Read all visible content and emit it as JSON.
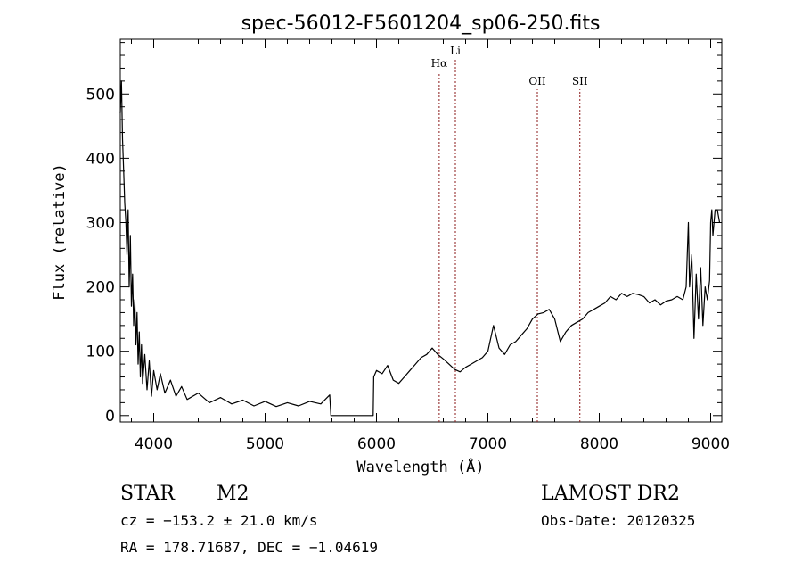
{
  "chart_data": {
    "type": "line",
    "title": "spec-56012-F5601204_sp06-250.fits",
    "xlabel": "Wavelength (Å)",
    "ylabel": "Flux (relative)",
    "xlim": [
      3700,
      9100
    ],
    "ylim": [
      -10,
      585
    ],
    "x_ticks": [
      4000,
      5000,
      6000,
      7000,
      8000,
      9000
    ],
    "y_ticks": [
      0,
      100,
      200,
      300,
      400,
      500
    ],
    "grid": false,
    "line_color": "#000000",
    "marker_color": "#8b1a1a",
    "spectral_lines": [
      {
        "label": "Hα",
        "x": 6563
      },
      {
        "label": "Li",
        "x": 6708
      },
      {
        "label": "OII",
        "x": 7444
      },
      {
        "label": "SII",
        "x": 7826
      }
    ],
    "series": [
      {
        "points": [
          [
            3700,
            470
          ],
          [
            3710,
            520
          ],
          [
            3720,
            430
          ],
          [
            3730,
            380
          ],
          [
            3740,
            330
          ],
          [
            3750,
            300
          ],
          [
            3760,
            250
          ],
          [
            3770,
            320
          ],
          [
            3780,
            200
          ],
          [
            3790,
            280
          ],
          [
            3800,
            170
          ],
          [
            3810,
            220
          ],
          [
            3820,
            140
          ],
          [
            3830,
            180
          ],
          [
            3840,
            110
          ],
          [
            3850,
            160
          ],
          [
            3860,
            80
          ],
          [
            3870,
            130
          ],
          [
            3880,
            60
          ],
          [
            3890,
            110
          ],
          [
            3900,
            50
          ],
          [
            3920,
            95
          ],
          [
            3940,
            40
          ],
          [
            3960,
            85
          ],
          [
            3980,
            30
          ],
          [
            4000,
            70
          ],
          [
            4030,
            40
          ],
          [
            4060,
            65
          ],
          [
            4100,
            35
          ],
          [
            4150,
            55
          ],
          [
            4200,
            30
          ],
          [
            4250,
            45
          ],
          [
            4300,
            25
          ],
          [
            4400,
            35
          ],
          [
            4500,
            20
          ],
          [
            4600,
            28
          ],
          [
            4700,
            18
          ],
          [
            4800,
            24
          ],
          [
            4900,
            15
          ],
          [
            5000,
            22
          ],
          [
            5100,
            14
          ],
          [
            5200,
            20
          ],
          [
            5300,
            15
          ],
          [
            5400,
            22
          ],
          [
            5500,
            18
          ],
          [
            5580,
            32
          ],
          [
            5590,
            0
          ],
          [
            5970,
            0
          ],
          [
            5975,
            60
          ],
          [
            6000,
            70
          ],
          [
            6050,
            65
          ],
          [
            6100,
            78
          ],
          [
            6150,
            55
          ],
          [
            6200,
            50
          ],
          [
            6250,
            60
          ],
          [
            6300,
            70
          ],
          [
            6350,
            80
          ],
          [
            6400,
            90
          ],
          [
            6450,
            95
          ],
          [
            6500,
            105
          ],
          [
            6550,
            95
          ],
          [
            6600,
            88
          ],
          [
            6650,
            80
          ],
          [
            6700,
            72
          ],
          [
            6750,
            68
          ],
          [
            6800,
            75
          ],
          [
            6850,
            80
          ],
          [
            6900,
            85
          ],
          [
            6950,
            90
          ],
          [
            7000,
            100
          ],
          [
            7050,
            140
          ],
          [
            7100,
            105
          ],
          [
            7150,
            95
          ],
          [
            7200,
            110
          ],
          [
            7250,
            115
          ],
          [
            7300,
            125
          ],
          [
            7350,
            135
          ],
          [
            7400,
            150
          ],
          [
            7450,
            158
          ],
          [
            7500,
            160
          ],
          [
            7550,
            165
          ],
          [
            7600,
            150
          ],
          [
            7650,
            115
          ],
          [
            7700,
            130
          ],
          [
            7750,
            140
          ],
          [
            7800,
            145
          ],
          [
            7850,
            150
          ],
          [
            7900,
            160
          ],
          [
            7950,
            165
          ],
          [
            8000,
            170
          ],
          [
            8050,
            175
          ],
          [
            8100,
            185
          ],
          [
            8150,
            180
          ],
          [
            8200,
            190
          ],
          [
            8250,
            185
          ],
          [
            8300,
            190
          ],
          [
            8350,
            188
          ],
          [
            8400,
            185
          ],
          [
            8450,
            175
          ],
          [
            8500,
            180
          ],
          [
            8550,
            172
          ],
          [
            8600,
            178
          ],
          [
            8650,
            180
          ],
          [
            8700,
            185
          ],
          [
            8750,
            180
          ],
          [
            8780,
            200
          ],
          [
            8800,
            300
          ],
          [
            8810,
            200
          ],
          [
            8830,
            250
          ],
          [
            8850,
            120
          ],
          [
            8870,
            220
          ],
          [
            8890,
            150
          ],
          [
            8910,
            230
          ],
          [
            8930,
            140
          ],
          [
            8950,
            200
          ],
          [
            8970,
            180
          ],
          [
            8990,
            210
          ],
          [
            9000,
            300
          ],
          [
            9010,
            320
          ],
          [
            9020,
            280
          ],
          [
            9040,
            320
          ],
          [
            9060,
            320
          ],
          [
            9080,
            300
          ]
        ]
      }
    ]
  },
  "footer": {
    "object_class": "STAR",
    "subclass": "M2",
    "survey": "LAMOST DR2",
    "cz": "cz = −153.2 ± 21.0 km/s",
    "obs_date": "Obs-Date: 20120325",
    "coords": "RA = 178.71687, DEC =  −1.04619"
  }
}
